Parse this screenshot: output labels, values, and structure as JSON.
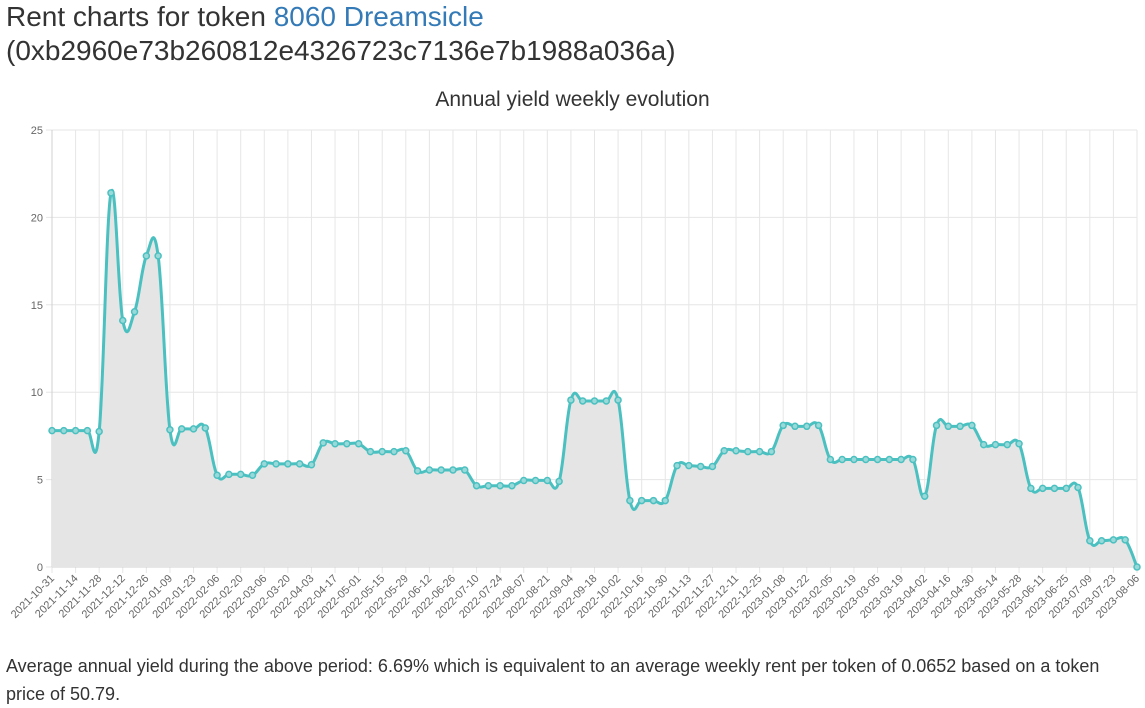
{
  "header": {
    "title_prefix": "Rent charts for token",
    "token_name": "8060 Dreamsicle",
    "token_address": "(0xb2960e73b260812e4326723c7136e7b1988a036a)"
  },
  "summary": "Average annual yield during the above period: 6.69% which is equivalent to an average weekly rent per token of 0.0652 based on a token price of 50.79.",
  "colors": {
    "line": "#4bc0c0",
    "fill": "#e5e5e5",
    "grid": "#e6e6e6",
    "link": "#337ab7"
  },
  "chart_data": {
    "type": "area",
    "title": "Annual yield weekly evolution",
    "ylim": [
      0,
      25
    ],
    "yticks": [
      0,
      5,
      10,
      15,
      20,
      25
    ],
    "grid": true,
    "x_labels": [
      "2021-10-31",
      "2021-11-14",
      "2021-11-28",
      "2021-12-12",
      "2021-12-26",
      "2022-01-09",
      "2022-01-23",
      "2022-02-06",
      "2022-02-20",
      "2022-03-06",
      "2022-03-20",
      "2022-04-03",
      "2022-04-17",
      "2022-05-01",
      "2022-05-15",
      "2022-05-29",
      "2022-06-12",
      "2022-06-26",
      "2022-07-10",
      "2022-07-24",
      "2022-08-07",
      "2022-08-21",
      "2022-09-04",
      "2022-09-18",
      "2022-10-02",
      "2022-10-16",
      "2022-10-30",
      "2022-11-13",
      "2022-11-27",
      "2022-12-11",
      "2022-12-25",
      "2023-01-08",
      "2023-01-22",
      "2023-02-05",
      "2023-02-19",
      "2023-03-05",
      "2023-03-19",
      "2023-04-02",
      "2023-04-16",
      "2023-04-30",
      "2023-05-14",
      "2023-05-28",
      "2023-06-11",
      "2023-06-25",
      "2023-07-09",
      "2023-07-23",
      "2023-08-06"
    ],
    "values": [
      7.8,
      7.8,
      7.8,
      7.8,
      7.75,
      21.4,
      14.1,
      14.6,
      17.8,
      17.8,
      7.85,
      7.9,
      7.9,
      7.95,
      5.25,
      5.3,
      5.3,
      5.25,
      5.9,
      5.9,
      5.9,
      5.9,
      5.85,
      7.1,
      7.05,
      7.05,
      7.05,
      6.6,
      6.6,
      6.6,
      6.65,
      5.5,
      5.55,
      5.55,
      5.55,
      5.55,
      4.65,
      4.65,
      4.65,
      4.65,
      4.95,
      4.95,
      4.95,
      4.9,
      9.55,
      9.5,
      9.5,
      9.5,
      9.55,
      3.8,
      3.8,
      3.8,
      3.8,
      5.8,
      5.8,
      5.75,
      5.75,
      6.65,
      6.65,
      6.6,
      6.6,
      6.6,
      8.1,
      8.05,
      8.05,
      8.1,
      6.15,
      6.15,
      6.15,
      6.15,
      6.15,
      6.15,
      6.15,
      6.15,
      4.05,
      8.1,
      8.05,
      8.05,
      8.1,
      7.0,
      7.0,
      7.0,
      7.05,
      4.5,
      4.5,
      4.5,
      4.5,
      4.55,
      1.5,
      1.5,
      1.55,
      1.55,
      0.0
    ]
  }
}
